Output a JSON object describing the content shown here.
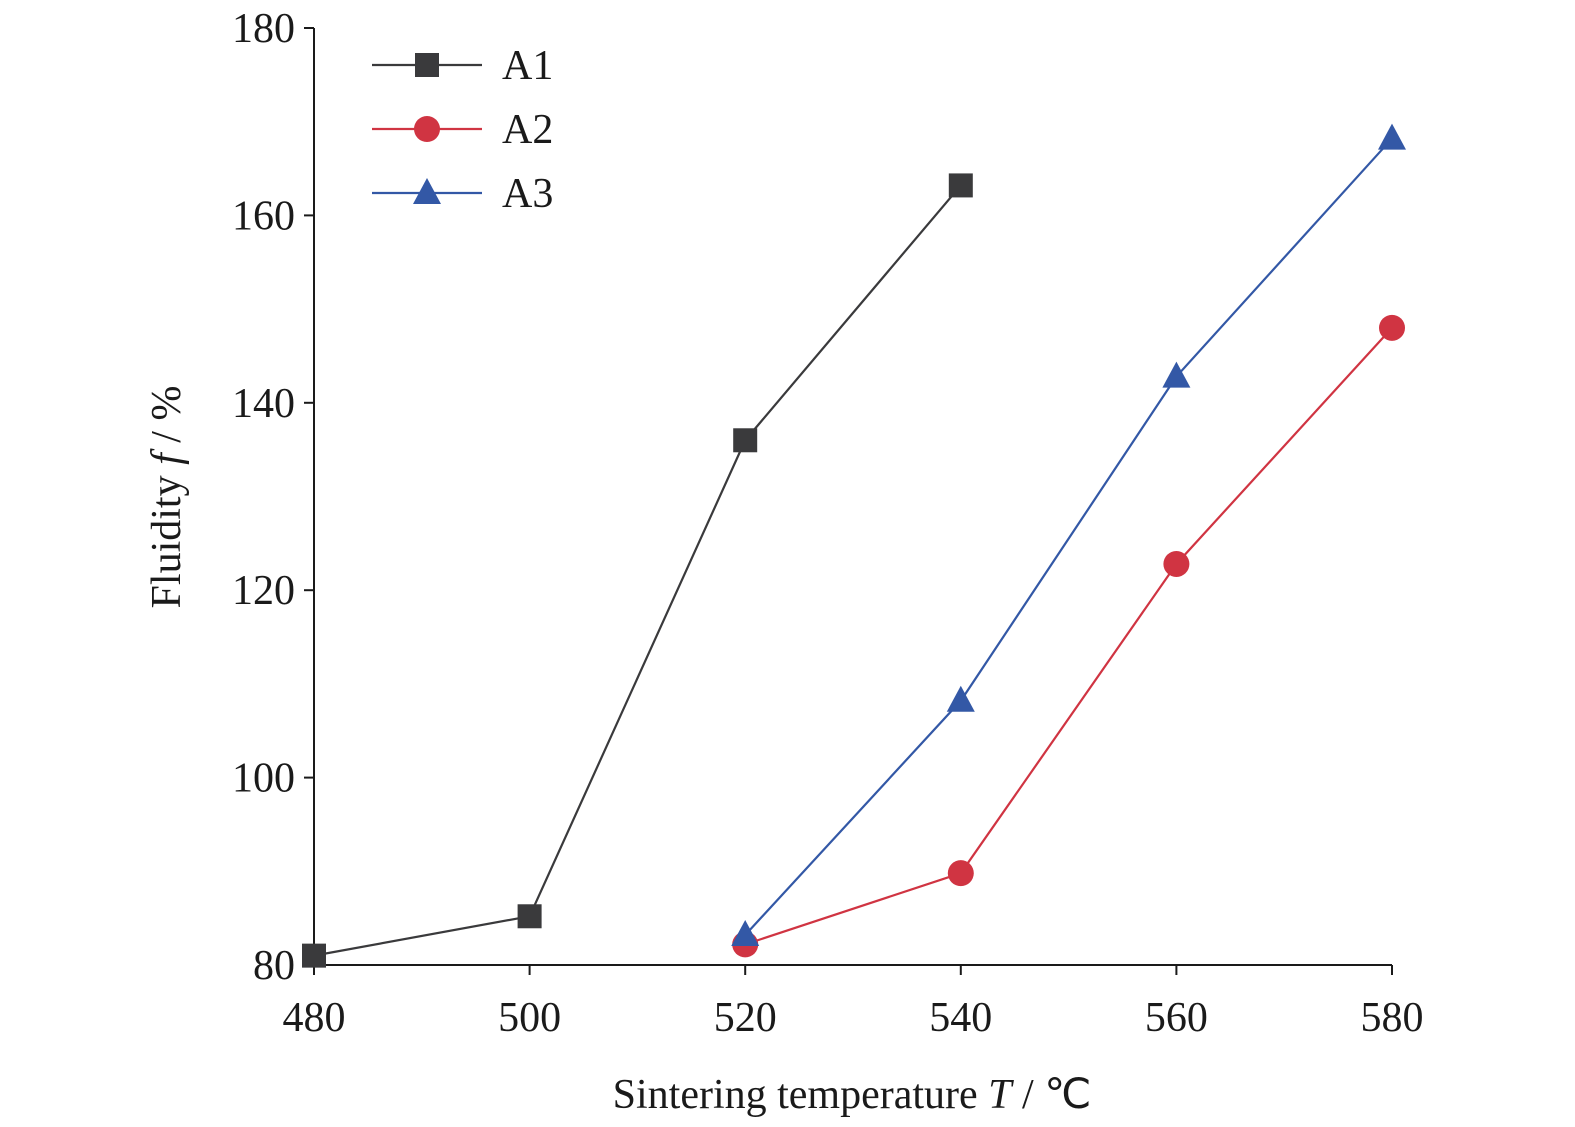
{
  "chart_data": {
    "type": "line",
    "xlabel": {
      "main": "Sintering temperature ",
      "var": "T",
      "unit": " / ℃"
    },
    "ylabel": {
      "main": "Fluidity ",
      "var": "f",
      "unit": " / %"
    },
    "xlim": [
      480,
      580
    ],
    "ylim": [
      80,
      180
    ],
    "xticks": [
      480,
      500,
      520,
      540,
      560,
      580
    ],
    "yticks": [
      80,
      100,
      120,
      140,
      160,
      180
    ],
    "grid": false,
    "legend_position": "top-left",
    "series": [
      {
        "name": "A1",
        "color": "#3a3a3c",
        "marker": "square",
        "x": [
          480,
          500,
          520,
          540
        ],
        "y": [
          81,
          85.2,
          136,
          163.2
        ]
      },
      {
        "name": "A2",
        "color": "#d03442",
        "marker": "circle",
        "x": [
          520,
          540,
          560,
          580
        ],
        "y": [
          82.2,
          89.8,
          122.8,
          148
        ]
      },
      {
        "name": "A3",
        "color": "#3358a6",
        "marker": "triangle",
        "x": [
          520,
          540,
          560,
          580
        ],
        "y": [
          83.2,
          108.2,
          142.8,
          168.2
        ]
      }
    ]
  }
}
